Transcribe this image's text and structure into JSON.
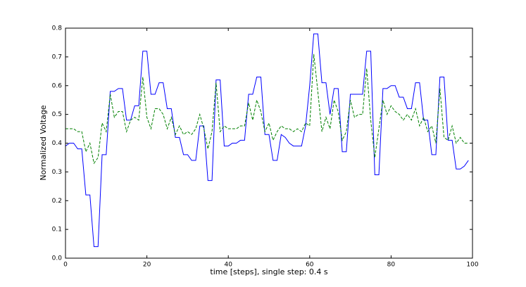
{
  "chart_data": {
    "type": "line",
    "xlabel": "time [steps], single step: 0.4 s",
    "ylabel": "Normalized Voltage",
    "x": [
      0,
      1,
      2,
      3,
      4,
      5,
      6,
      7,
      8,
      9,
      10,
      11,
      12,
      13,
      14,
      15,
      16,
      17,
      18,
      19,
      20,
      21,
      22,
      23,
      24,
      25,
      26,
      27,
      28,
      29,
      30,
      31,
      32,
      33,
      34,
      35,
      36,
      37,
      38,
      39,
      40,
      41,
      42,
      43,
      44,
      45,
      46,
      47,
      48,
      49,
      50,
      51,
      52,
      53,
      54,
      55,
      56,
      57,
      58,
      59,
      60,
      61,
      62,
      63,
      64,
      65,
      66,
      67,
      68,
      69,
      70,
      71,
      72,
      73,
      74,
      75,
      76,
      77,
      78,
      79,
      80,
      81,
      82,
      83,
      84,
      85,
      86,
      87,
      88,
      89,
      90,
      91,
      92,
      93,
      94,
      95,
      96,
      97,
      98,
      99
    ],
    "series": [
      {
        "color": "#0000ff",
        "linestyle": "solid",
        "values": [
          0.39,
          0.4,
          0.4,
          0.38,
          0.38,
          0.22,
          0.22,
          0.04,
          0.04,
          0.36,
          0.36,
          0.58,
          0.58,
          0.59,
          0.59,
          0.48,
          0.48,
          0.53,
          0.53,
          0.72,
          0.72,
          0.57,
          0.57,
          0.61,
          0.61,
          0.52,
          0.52,
          0.42,
          0.42,
          0.36,
          0.36,
          0.34,
          0.34,
          0.46,
          0.46,
          0.27,
          0.27,
          0.62,
          0.62,
          0.39,
          0.39,
          0.4,
          0.4,
          0.41,
          0.41,
          0.57,
          0.57,
          0.63,
          0.63,
          0.43,
          0.43,
          0.34,
          0.34,
          0.43,
          0.42,
          0.4,
          0.39,
          0.39,
          0.39,
          0.46,
          0.6,
          0.78,
          0.78,
          0.61,
          0.61,
          0.5,
          0.59,
          0.59,
          0.37,
          0.37,
          0.57,
          0.57,
          0.57,
          0.57,
          0.72,
          0.72,
          0.29,
          0.29,
          0.59,
          0.59,
          0.6,
          0.6,
          0.56,
          0.56,
          0.52,
          0.52,
          0.61,
          0.61,
          0.48,
          0.48,
          0.36,
          0.36,
          0.63,
          0.63,
          0.41,
          0.41,
          0.31,
          0.31,
          0.32,
          0.34
        ]
      },
      {
        "color": "#008000",
        "linestyle": "dashed",
        "values": [
          0.45,
          0.45,
          0.45,
          0.44,
          0.44,
          0.37,
          0.4,
          0.33,
          0.35,
          0.47,
          0.44,
          0.57,
          0.49,
          0.51,
          0.51,
          0.44,
          0.48,
          0.49,
          0.48,
          0.63,
          0.49,
          0.45,
          0.52,
          0.52,
          0.5,
          0.45,
          0.49,
          0.43,
          0.46,
          0.43,
          0.44,
          0.43,
          0.45,
          0.5,
          0.45,
          0.38,
          0.44,
          0.61,
          0.44,
          0.46,
          0.45,
          0.45,
          0.45,
          0.46,
          0.46,
          0.54,
          0.48,
          0.55,
          0.51,
          0.44,
          0.47,
          0.41,
          0.44,
          0.46,
          0.45,
          0.45,
          0.44,
          0.45,
          0.44,
          0.47,
          0.46,
          0.71,
          0.58,
          0.44,
          0.49,
          0.45,
          0.55,
          0.51,
          0.41,
          0.44,
          0.55,
          0.49,
          0.5,
          0.5,
          0.66,
          0.48,
          0.35,
          0.45,
          0.55,
          0.5,
          0.53,
          0.51,
          0.5,
          0.48,
          0.5,
          0.48,
          0.52,
          0.46,
          0.49,
          0.44,
          0.46,
          0.4,
          0.59,
          0.42,
          0.41,
          0.46,
          0.4,
          0.42,
          0.4,
          0.4
        ]
      }
    ],
    "xlim": [
      0,
      100
    ],
    "xticks": [
      0,
      20,
      40,
      60,
      80,
      100
    ],
    "ylim": [
      0,
      0.8
    ],
    "yticks": [
      {
        "value": 0,
        "label": "0.0"
      },
      0.1,
      0.2,
      0.3,
      0.4,
      0.5,
      0.6,
      0.7,
      0.8
    ],
    "grid": false
  }
}
